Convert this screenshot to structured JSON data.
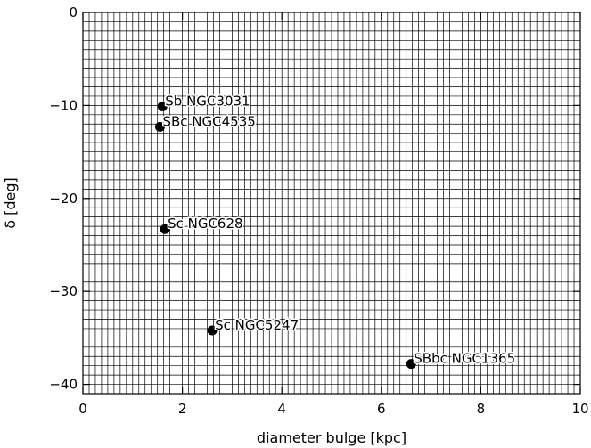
{
  "chart_data": {
    "type": "scatter",
    "title": "",
    "xlabel": "diameter bulge [kpc]",
    "ylabel": "δ [deg]",
    "xlim": [
      0,
      10
    ],
    "ylim": [
      -41,
      0
    ],
    "x_ticks": [
      0,
      2,
      4,
      6,
      8,
      10
    ],
    "y_ticks": [
      0,
      -10,
      -20,
      -30,
      -40
    ],
    "x_tick_labels": [
      "0",
      "2",
      "4",
      "6",
      "8",
      "10"
    ],
    "y_tick_labels": [
      "0",
      "−10",
      "−20",
      "−30",
      "−40"
    ],
    "grid": true,
    "points": [
      {
        "x": 1.6,
        "y": -10.1,
        "label": "Sb NGC3031"
      },
      {
        "x": 1.55,
        "y": -12.3,
        "label": "SBc NGC4535"
      },
      {
        "x": 1.65,
        "y": -23.3,
        "label": "Sc NGC628"
      },
      {
        "x": 2.6,
        "y": -34.2,
        "label": "Sc NGC5247"
      },
      {
        "x": 6.6,
        "y": -37.8,
        "label": "SBbc NGC1365"
      }
    ]
  }
}
